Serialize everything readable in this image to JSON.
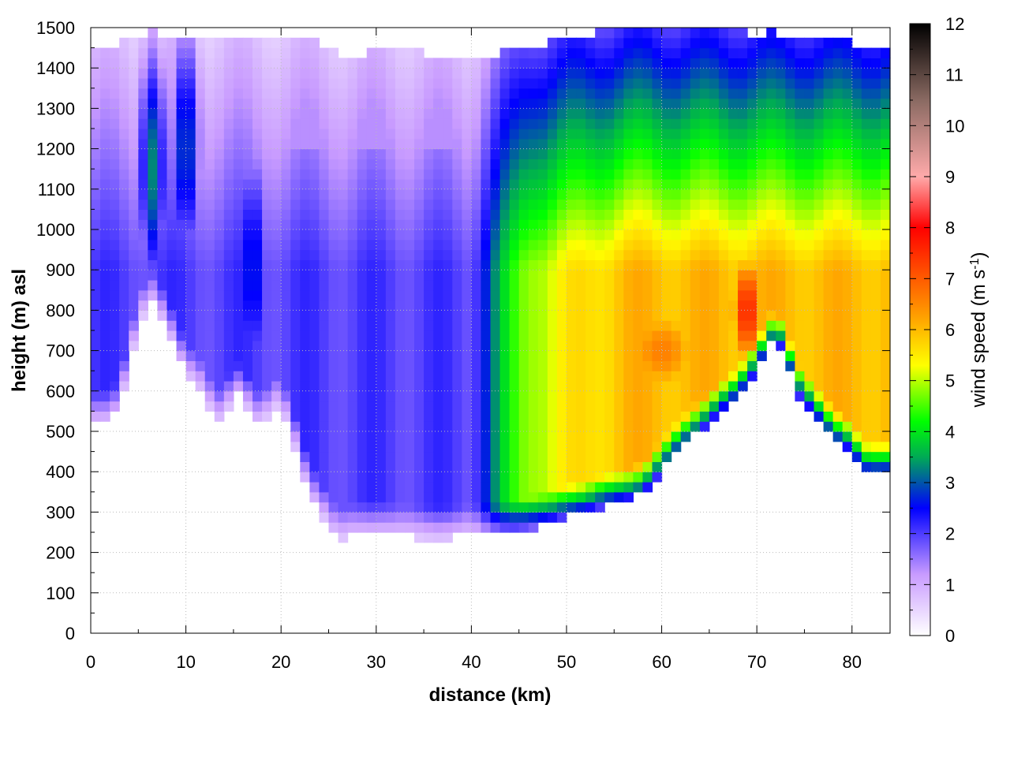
{
  "chart_data": {
    "type": "heatmap",
    "title": "",
    "xlabel": "distance (km)",
    "ylabel": "height (m) asl",
    "xlim": [
      0,
      84
    ],
    "ylim": [
      0,
      1500
    ],
    "x_ticks": [
      0,
      10,
      20,
      30,
      40,
      50,
      60,
      70,
      80
    ],
    "y_ticks": [
      0,
      100,
      200,
      300,
      400,
      500,
      600,
      700,
      800,
      900,
      1000,
      1100,
      1200,
      1300,
      1400,
      1500
    ],
    "grid": true,
    "colorbar": {
      "label_main": "wind speed (m s",
      "label_sup": "-1",
      "label_end": ")",
      "range": [
        0,
        12
      ],
      "ticks": [
        0,
        1,
        2,
        3,
        4,
        5,
        6,
        7,
        8,
        9,
        10,
        11,
        12
      ],
      "palette": [
        {
          "v": 0,
          "color": "#ffffff"
        },
        {
          "v": 1.2,
          "color": "#c89bff"
        },
        {
          "v": 2.5,
          "color": "#0000ff"
        },
        {
          "v": 3.5,
          "color": "#00aa55"
        },
        {
          "v": 4.2,
          "color": "#00ff00"
        },
        {
          "v": 5.3,
          "color": "#ffff00"
        },
        {
          "v": 6.5,
          "color": "#ff8800"
        },
        {
          "v": 8,
          "color": "#ff0000"
        },
        {
          "v": 9,
          "color": "#ffaaaa"
        },
        {
          "v": 10.5,
          "color": "#8a6a62"
        },
        {
          "v": 12,
          "color": "#000000"
        }
      ]
    },
    "terrain": {
      "x": [
        0,
        1,
        2,
        3,
        4,
        5,
        6,
        6.5,
        7,
        8,
        9,
        10,
        11,
        12,
        13,
        14,
        15,
        16,
        17,
        18,
        19,
        20,
        21,
        22,
        23,
        24,
        25,
        26,
        27,
        28,
        29,
        30,
        32,
        34,
        36,
        38,
        40,
        42,
        44,
        46,
        48,
        50,
        52,
        54,
        56,
        58,
        60,
        62,
        64,
        66,
        68,
        70,
        71,
        72,
        73,
        74,
        76,
        78,
        80,
        81,
        82,
        83,
        84
      ],
      "height": [
        510,
        530,
        520,
        560,
        650,
        760,
        810,
        815,
        800,
        760,
        700,
        640,
        620,
        580,
        530,
        525,
        600,
        580,
        540,
        505,
        560,
        555,
        500,
        420,
        340,
        310,
        260,
        230,
        235,
        248,
        245,
        250,
        240,
        237,
        237,
        237,
        240,
        240,
        248,
        260,
        270,
        290,
        300,
        315,
        330,
        345,
        400,
        455,
        500,
        545,
        580,
        650,
        700,
        730,
        690,
        600,
        540,
        480,
        450,
        400,
        395,
        395,
        400
      ]
    },
    "top_edge": {
      "x": [
        0,
        2,
        4,
        6,
        8,
        10,
        12,
        14,
        16,
        18,
        20,
        22,
        24,
        26,
        27,
        28,
        30,
        32,
        34,
        36,
        38,
        40,
        42,
        44,
        46,
        48,
        50,
        52,
        54,
        56,
        58,
        60,
        62,
        64,
        66,
        68,
        70,
        72,
        74,
        76,
        78,
        80,
        82,
        84
      ],
      "height": [
        1440,
        1455,
        1470,
        1490,
        1480,
        1460,
        1470,
        1480,
        1470,
        1460,
        1485,
        1470,
        1460,
        1440,
        1430,
        1430,
        1440,
        1445,
        1440,
        1435,
        1435,
        1435,
        1430,
        1440,
        1450,
        1460,
        1470,
        1480,
        1490,
        1490,
        1490,
        1490,
        1490,
        1490,
        1490,
        1490,
        1480,
        1490,
        1470,
        1480,
        1470,
        1460,
        1450,
        1460
      ]
    },
    "field_cores": [
      {
        "x": 6.5,
        "height": 1150,
        "speed": 3.3,
        "sx": 1.1,
        "sz": 230
      },
      {
        "x": 10,
        "height": 1200,
        "speed": 3.0,
        "sx": 1.2,
        "sz": 230
      },
      {
        "x": 17,
        "height": 900,
        "speed": 2.8,
        "sx": 1.2,
        "sz": 250
      },
      {
        "x": 60,
        "height": 700,
        "speed": 6.6,
        "sx": 6,
        "sz": 160
      },
      {
        "x": 69,
        "height": 800,
        "speed": 7.6,
        "sx": 2.2,
        "sz": 170
      }
    ]
  }
}
